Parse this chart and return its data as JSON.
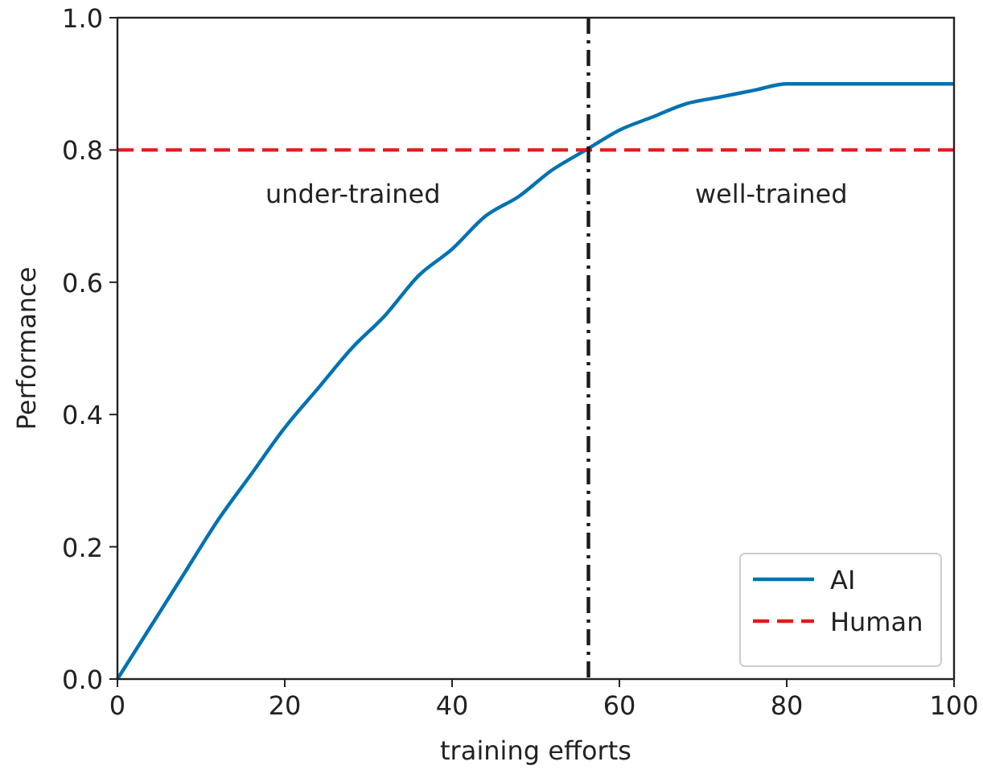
{
  "chart_data": {
    "type": "line",
    "xlabel": "training efforts",
    "ylabel": "Performance",
    "xlim": [
      0,
      100
    ],
    "ylim": [
      0,
      1
    ],
    "xticks": [
      0,
      20,
      40,
      60,
      80,
      100
    ],
    "yticks": [
      {
        "value": 0,
        "label": "0.0"
      },
      {
        "value": 0.2,
        "label": "0.2"
      },
      {
        "value": 0.4,
        "label": "0.4"
      },
      {
        "value": 0.6,
        "label": "0.6"
      },
      {
        "value": 0.8,
        "label": "0.8"
      },
      {
        "value": 1,
        "label": "1.0"
      }
    ],
    "grid": false,
    "legend": "bottom right",
    "series": [
      {
        "name": "AI",
        "color": "#0072b2",
        "line_style": "solid",
        "x": [
          0,
          4,
          8,
          12,
          16,
          20,
          24,
          28,
          32,
          36,
          40,
          44,
          48,
          52,
          56,
          60,
          64,
          68,
          72,
          76,
          80,
          84,
          88,
          92,
          96,
          100
        ],
        "values": [
          0,
          0.08,
          0.16,
          0.24,
          0.31,
          0.38,
          0.44,
          0.5,
          0.55,
          0.61,
          0.65,
          0.7,
          0.73,
          0.77,
          0.8,
          0.83,
          0.85,
          0.87,
          0.88,
          0.89,
          0.9,
          0.9,
          0.9,
          0.9,
          0.9,
          0.9
        ]
      },
      {
        "name": "Human",
        "color": "#e41a1c",
        "line_style": "dashed",
        "x": [
          0,
          100
        ],
        "values": [
          0.8,
          0.8
        ]
      }
    ],
    "ref_lines": [
      {
        "axis": "x",
        "value": 56.3,
        "color": "#1a1a1a",
        "line_style": "dashdot"
      }
    ],
    "annotations": [
      "under-trained",
      "well-trained"
    ]
  }
}
